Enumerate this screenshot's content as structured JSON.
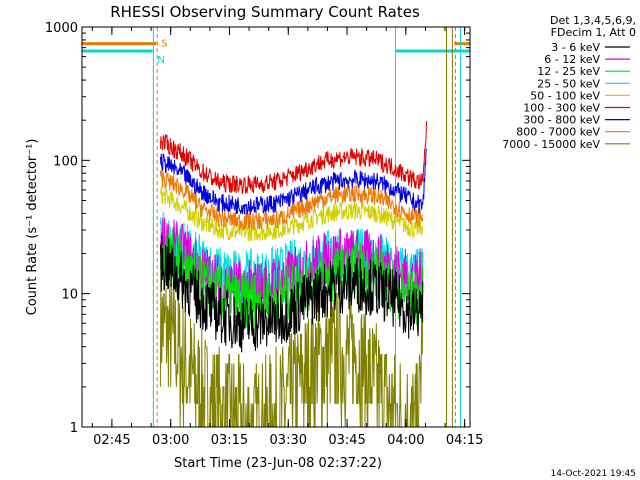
{
  "chart_data": {
    "type": "line",
    "title": "RHESSI Observing Summary Count Rates",
    "xlabel": "Start Time (23-Jun-08 02:37:22)",
    "ylabel": "Count Rate (s⁻¹ detector⁻¹)",
    "yscale": "log",
    "ylim": [
      1,
      1000
    ],
    "xlim_minutes": [
      0,
      99
    ],
    "x_ticks": [
      {
        "label": "02:45",
        "minute": 7.63
      },
      {
        "label": "03:00",
        "minute": 22.63
      },
      {
        "label": "03:15",
        "minute": 37.63
      },
      {
        "label": "03:30",
        "minute": 52.63
      },
      {
        "label": "03:45",
        "minute": 67.63
      },
      {
        "label": "04:00",
        "minute": 82.63
      },
      {
        "label": "04:15",
        "minute": 97.63
      }
    ],
    "y_ticks": [
      {
        "label": "1",
        "value": 1
      },
      {
        "label": "10",
        "value": 10
      },
      {
        "label": "100",
        "value": 100
      },
      {
        "label": "1000",
        "value": 1000
      }
    ],
    "legend_header": [
      "Det 1,3,4,5,6,9,",
      "FDecim 1, Att 0"
    ],
    "legend_position": "right",
    "series": [
      {
        "name": "3 - 6 keV",
        "color": "#000000",
        "x": [
          20,
          22,
          26,
          30,
          35,
          40,
          45,
          50,
          55,
          60,
          65,
          70,
          75,
          80,
          85,
          87
        ],
        "values": [
          17,
          16,
          12,
          9,
          7,
          6,
          6,
          6.5,
          8,
          10,
          11.5,
          12,
          11,
          9,
          7,
          8
        ]
      },
      {
        "name": "6 - 12 keV",
        "color": "#e000e0",
        "x": [
          20,
          22,
          26,
          30,
          35,
          40,
          45,
          50,
          55,
          60,
          65,
          70,
          75,
          80,
          85,
          87
        ],
        "values": [
          24,
          23,
          20,
          15,
          12,
          11,
          11,
          12,
          14,
          17,
          19,
          19,
          18,
          15,
          12,
          14
        ]
      },
      {
        "name": "12 - 25 keV",
        "color": "#00e000",
        "x": [
          20,
          22,
          26,
          30,
          35,
          40,
          45,
          50,
          55,
          60,
          65,
          70,
          75,
          80,
          85,
          87
        ],
        "values": [
          20,
          19,
          16,
          12,
          10,
          9,
          9,
          9.5,
          11,
          13,
          14,
          15,
          14,
          11,
          9,
          10
        ]
      },
      {
        "name": "25 - 50 keV",
        "color": "#00e0e0",
        "x": [
          20,
          22,
          26,
          30,
          35,
          40,
          45,
          50,
          55,
          60,
          65,
          70,
          75,
          80,
          85,
          87
        ],
        "values": [
          26,
          24,
          21,
          17,
          14,
          13,
          13,
          14,
          16,
          18,
          19,
          19,
          18,
          15,
          13,
          15
        ]
      },
      {
        "name": "50 - 100 keV",
        "color": "#d0d000",
        "x": [
          20,
          22,
          26,
          30,
          35,
          40,
          45,
          50,
          55,
          60,
          65,
          70,
          75,
          80,
          85,
          87
        ],
        "values": [
          55,
          52,
          44,
          35,
          30,
          29,
          29,
          30,
          33,
          38,
          41,
          42,
          40,
          35,
          30,
          32
        ]
      },
      {
        "name": "100 - 300 keV",
        "color": "#e00000",
        "x": [
          20,
          22,
          26,
          30,
          35,
          40,
          45,
          50,
          55,
          60,
          65,
          70,
          75,
          80,
          85,
          87,
          88
        ],
        "values": [
          140,
          130,
          110,
          85,
          68,
          66,
          66,
          70,
          80,
          95,
          104,
          106,
          101,
          87,
          70,
          68,
          200
        ]
      },
      {
        "name": "300 - 800 keV",
        "color": "#0000e0",
        "x": [
          20,
          22,
          26,
          30,
          35,
          40,
          45,
          50,
          55,
          60,
          65,
          70,
          75,
          80,
          85,
          87,
          88
        ],
        "values": [
          98,
          92,
          78,
          60,
          48,
          46,
          46,
          48,
          55,
          64,
          70,
          72,
          70,
          60,
          48,
          46,
          140
        ]
      },
      {
        "name": "800 - 7000 keV",
        "color": "#f07800",
        "x": [
          20,
          22,
          26,
          30,
          35,
          40,
          45,
          50,
          55,
          60,
          65,
          70,
          75,
          80,
          85,
          87
        ],
        "values": [
          75,
          70,
          60,
          45,
          37,
          35,
          35,
          36,
          42,
          50,
          55,
          56,
          54,
          45,
          37,
          38
        ]
      },
      {
        "name": "7000 - 15000 keV",
        "color": "#808000",
        "x": [
          20,
          22,
          24,
          26,
          28,
          30,
          33,
          36,
          40,
          45,
          50,
          55,
          60,
          65,
          70,
          75,
          80,
          84,
          86,
          87
        ],
        "values": [
          6,
          5,
          4,
          3,
          2.4,
          1.8,
          1.5,
          1.2,
          1.1,
          1.0,
          1.3,
          2,
          3,
          3.5,
          3.5,
          2,
          1.3,
          1.0,
          1.0,
          11
        ]
      }
    ],
    "overlays": [
      {
        "label": "S",
        "color": "#f07800",
        "level": 750,
        "x_start": 0,
        "x_end": 19,
        "x_end_marker": 19.2,
        "x_resume": 95,
        "x_resume_marker": 95.3
      },
      {
        "label": "N",
        "color": "#00d8d8",
        "level": 660,
        "x_start": 0,
        "x_end": 18,
        "x_end_marker": 18.2,
        "x_resume": 80,
        "x_resume_marker": 96.6
      }
    ],
    "vertical_markers": [
      {
        "color": "#808000",
        "x": 93.0
      },
      {
        "color": "#808000",
        "x": 94.5
      }
    ],
    "grid": false
  },
  "footer": {
    "timestamp": "14-Oct-2021 19:45"
  }
}
